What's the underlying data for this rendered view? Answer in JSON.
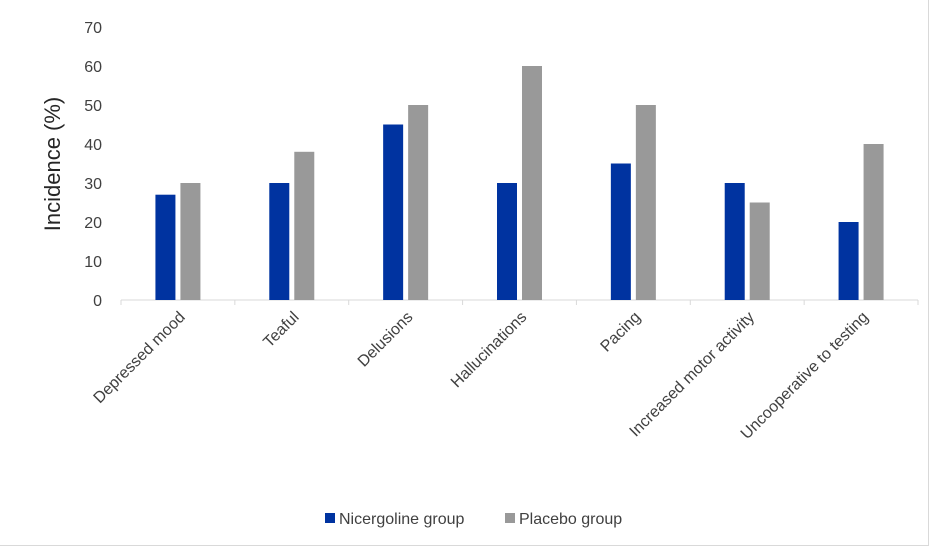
{
  "chart_data": {
    "type": "bar",
    "ylabel": "Incidence (%)",
    "xlabel": "",
    "ylim": [
      0,
      70
    ],
    "yticks": [
      0,
      10,
      20,
      30,
      40,
      50,
      60,
      70
    ],
    "grid": false,
    "legend_position": "bottom",
    "categories": [
      "Depressed mood",
      "Teaful",
      "Delusions",
      "Hallucinations",
      "Pacing",
      "Increased motor activity",
      "Uncooperative to testing"
    ],
    "series": [
      {
        "name": "Nicergoline group",
        "color": "#0033a0",
        "values": [
          27,
          30,
          45,
          30,
          35,
          30,
          20
        ]
      },
      {
        "name": "Placebo group",
        "color": "#999999",
        "values": [
          30,
          38,
          50,
          60,
          50,
          25,
          40
        ]
      }
    ]
  }
}
